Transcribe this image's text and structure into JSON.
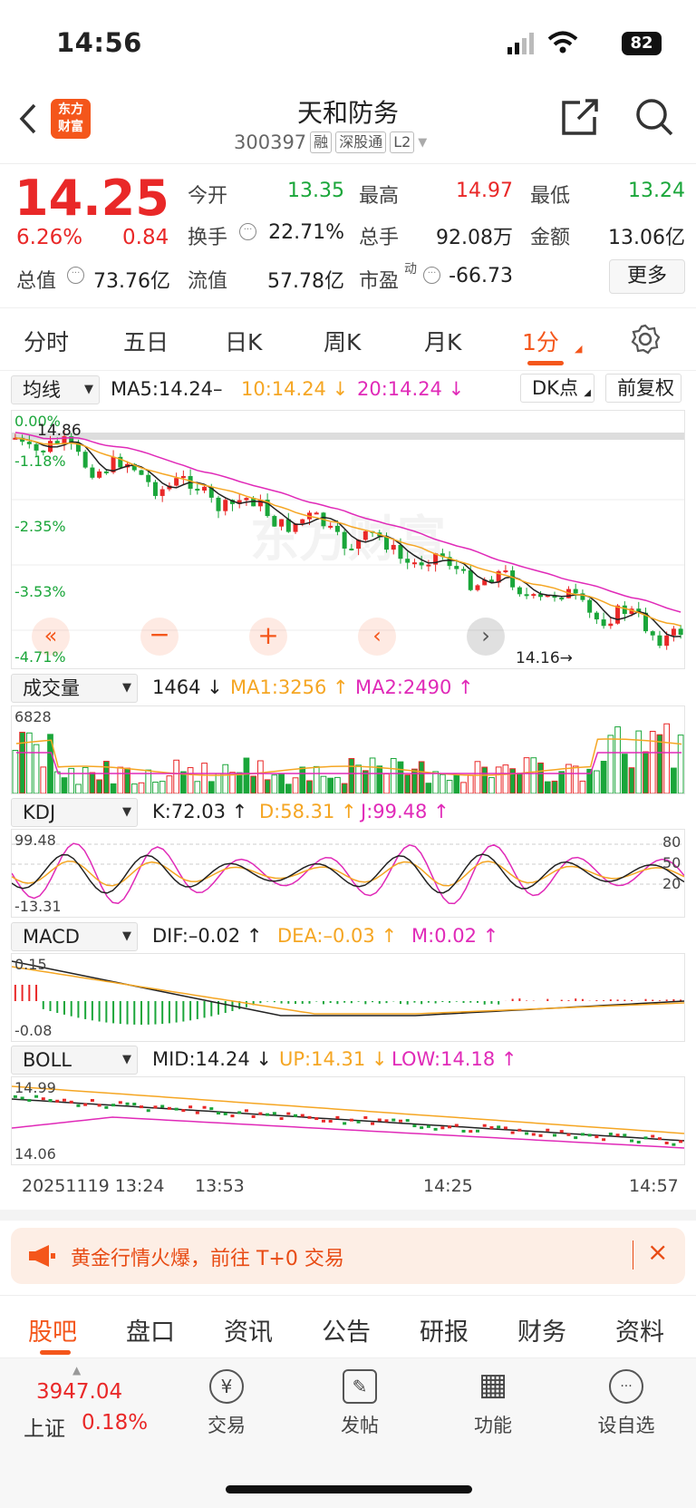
{
  "status": {
    "time": "14:56",
    "battery": "82"
  },
  "header": {
    "logo": [
      "东方",
      "财富"
    ],
    "name": "天和防务",
    "code": "300397",
    "tags": [
      "融",
      "深股通",
      "L2"
    ]
  },
  "quote": {
    "price": "14.25",
    "pct": "6.26%",
    "change": "0.84",
    "open_l": "今开",
    "open": "13.35",
    "high_l": "最高",
    "high": "14.97",
    "low_l": "最低",
    "low": "13.24",
    "turn_l": "换手",
    "turn": "22.71%",
    "vol_l": "总手",
    "vol": "92.08万",
    "amt_l": "金额",
    "amt": "13.06亿",
    "mcap_l": "总值",
    "mcap": "73.76亿",
    "flt_l": "流值",
    "flt": "57.78亿",
    "pe_l": "市盈",
    "pe_sup": "动",
    "pe": "-66.73",
    "more": "更多"
  },
  "period_tabs": [
    "分时",
    "五日",
    "日K",
    "周K",
    "月K",
    "1分"
  ],
  "ma": {
    "sel": "均线",
    "ma5": "MA5:14.24–",
    "ma10": "10:14.24",
    "ma20": "20:14.24",
    "dk": "DK点",
    "fq": "前复权"
  },
  "price_axis": {
    "top": "0.00%",
    "l1": "-1.18%",
    "l2": "-2.35%",
    "l3": "-3.53%",
    "l4": "-4.71%",
    "hi": "14.86",
    "lo": "14.16"
  },
  "watermark": "东方财富",
  "vol_ind": {
    "sel": "成交量",
    "v": "1464",
    "ma1": "MA1:3256",
    "ma2": "MA2:2490",
    "axis": "6828"
  },
  "kdj": {
    "sel": "KDJ",
    "k": "K:72.03",
    "d": "D:58.31",
    "j": "J:99.48",
    "top": "99.48",
    "bot": "-13.31",
    "r80": "80",
    "r50": "50",
    "r20": "20"
  },
  "macd": {
    "sel": "MACD",
    "dif": "DIF:–0.02",
    "dea": "DEA:–0.03",
    "m": "M:0.02",
    "top": "0.15",
    "bot": "-0.08"
  },
  "boll": {
    "sel": "BOLL",
    "mid": "MID:14.24",
    "up": "UP:14.31",
    "low": "LOW:14.18",
    "top": "14.99",
    "bot": "14.06"
  },
  "time_axis": {
    "start": "20251119 13:24",
    "t1": "13:53",
    "t2": "14:25",
    "end": "14:57"
  },
  "banner": {
    "text": "黄金行情火爆，前往 T+0 交易",
    "close": "×"
  },
  "bottom_tabs": [
    "股吧",
    "盘口",
    "资讯",
    "公告",
    "研报",
    "财务",
    "资料"
  ],
  "index": {
    "value": "3947.04",
    "name": "上证",
    "pct": "0.18%"
  },
  "nav": [
    {
      "label": "交易",
      "icon": "¥"
    },
    {
      "label": "发帖",
      "icon": "✎"
    },
    {
      "label": "功能",
      "icon": "▦"
    },
    {
      "label": "设自选",
      "icon": "···"
    }
  ],
  "colors": {
    "up": "#e92828",
    "down": "#1aa63a",
    "accent": "#f4561b",
    "ma10": "#f5a623",
    "ma20": "#e02ab8"
  }
}
